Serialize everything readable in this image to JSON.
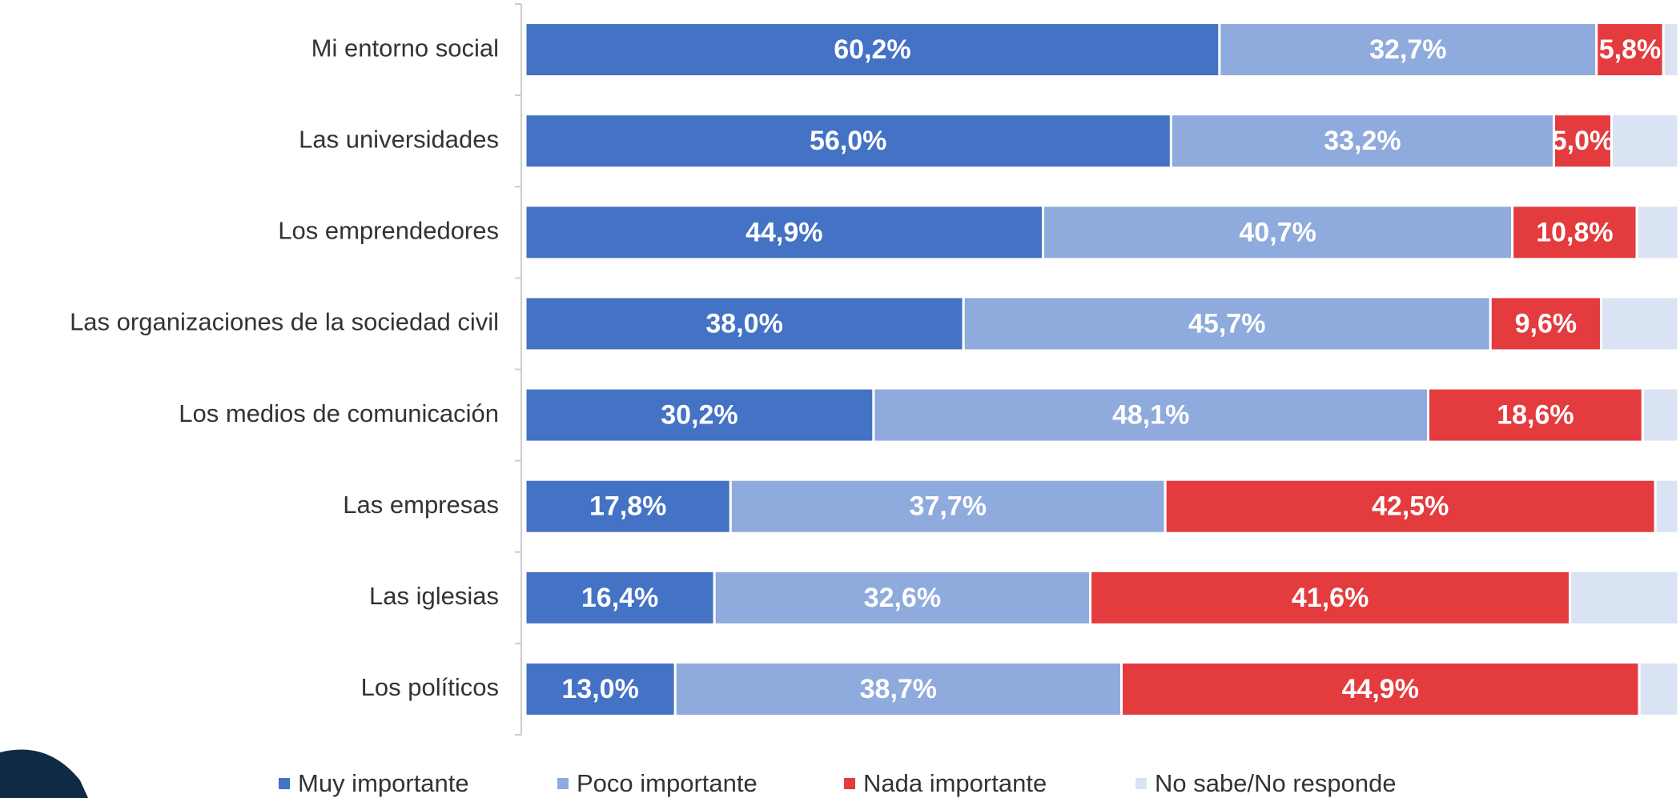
{
  "chart_data": {
    "type": "stacked-bar-horizontal",
    "categories": [
      "Mi entorno social",
      "Las universidades",
      "Los emprendedores",
      "Las organizaciones de la sociedad civil",
      "Los medios de comunicación",
      "Las empresas",
      "Las iglesias",
      "Los políticos"
    ],
    "xlim": [
      0,
      100
    ],
    "legend": "bottom",
    "series": [
      {
        "name": "Muy importante",
        "color": "#4472c4",
        "values": [
          60.2,
          56.0,
          44.9,
          38.0,
          30.2,
          17.8,
          16.4,
          13.0
        ],
        "value_labels": [
          "60,2%",
          "56,0%",
          "44,9%",
          "38,0%",
          "30,2%",
          "17,8%",
          "16,4%",
          "13,0%"
        ]
      },
      {
        "name": "Poco importante",
        "color": "#8faadc",
        "values": [
          32.7,
          33.2,
          40.7,
          45.7,
          48.1,
          37.7,
          32.6,
          38.7
        ],
        "value_labels": [
          "32,7%",
          "33,2%",
          "40,7%",
          "45,7%",
          "48,1%",
          "37,7%",
          "32,6%",
          "38,7%"
        ]
      },
      {
        "name": "Nada importante",
        "color": "#e33b3e",
        "values": [
          5.8,
          5.0,
          10.8,
          9.6,
          18.6,
          42.5,
          41.6,
          44.9
        ],
        "value_labels": [
          "5,8%",
          "5,0%",
          "10,8%",
          "9,6%",
          "18,6%",
          "42,5%",
          "41,6%",
          "44,9%"
        ]
      },
      {
        "name": "No sabe/No responde",
        "color": "#dae3f3",
        "values": [
          1.3,
          5.8,
          3.6,
          6.7,
          3.1,
          2.0,
          9.4,
          3.4
        ]
      }
    ]
  }
}
